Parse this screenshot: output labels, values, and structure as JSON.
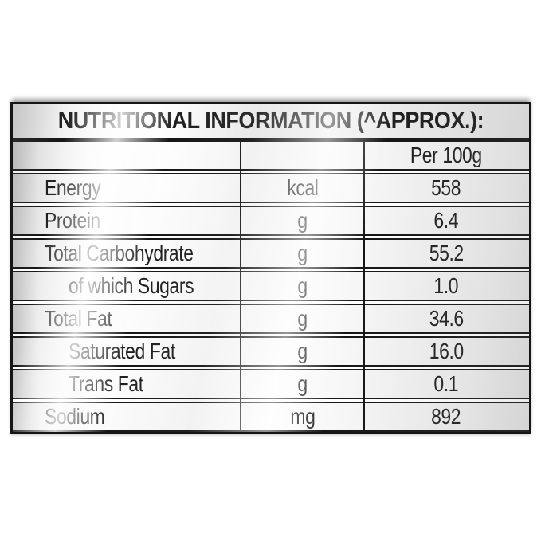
{
  "title": "NUTRITIONAL INFORMATION (^APPROX.):",
  "table": {
    "column_header": "Per 100g",
    "rows": [
      {
        "label": "Energy",
        "unit": "kcal",
        "value": "558",
        "indent": false
      },
      {
        "label": "Protein",
        "unit": "g",
        "value": "6.4",
        "indent": false
      },
      {
        "label": "Total Carbohydrate",
        "unit": "g",
        "value": "55.2",
        "indent": false
      },
      {
        "label": "of which Sugars",
        "unit": "g",
        "value": "1.0",
        "indent": true
      },
      {
        "label": "Total Fat",
        "unit": "g",
        "value": "34.6",
        "indent": false
      },
      {
        "label": "Saturated Fat",
        "unit": "g",
        "value": "16.0",
        "indent": true
      },
      {
        "label": "Trans Fat",
        "unit": "g",
        "value": "0.1",
        "indent": true
      },
      {
        "label": "Sodium",
        "unit": "mg",
        "value": "892",
        "indent": false
      }
    ]
  },
  "colors": {
    "page_background": "#ffffff",
    "border": "#161616",
    "text": "#1f1f1f"
  }
}
